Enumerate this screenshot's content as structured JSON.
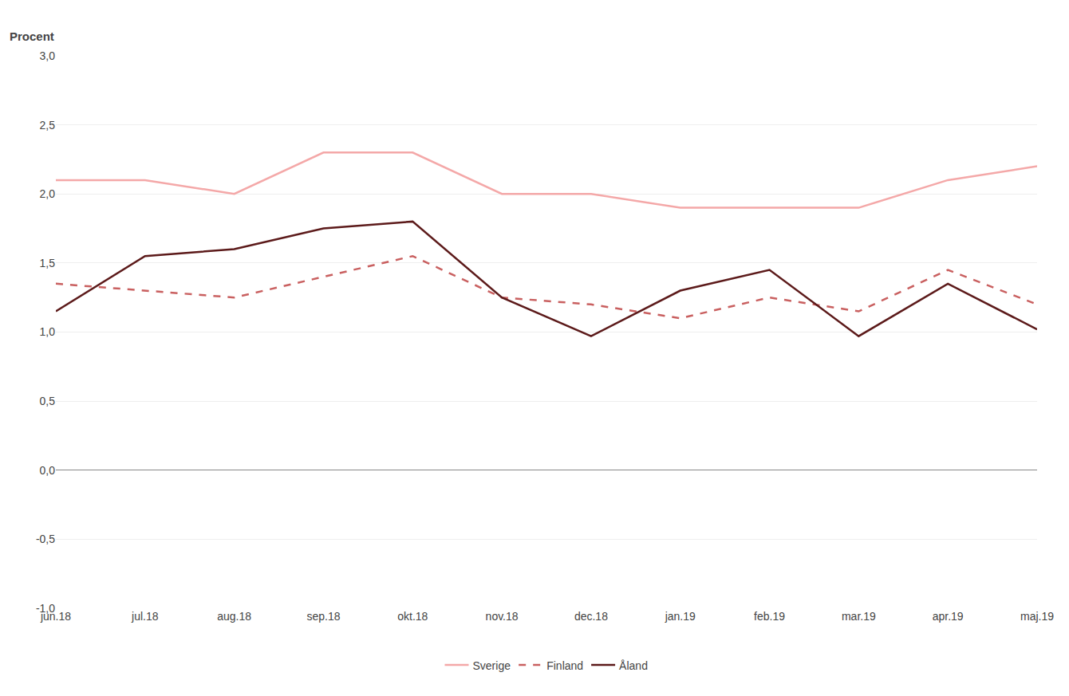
{
  "chart_data": {
    "type": "line",
    "ylabel": "Procent",
    "categories": [
      "jun.18",
      "jul.18",
      "aug.18",
      "sep.18",
      "okt.18",
      "nov.18",
      "dec.18",
      "jan.19",
      "feb.19",
      "mar.19",
      "apr.19",
      "maj.19"
    ],
    "series": [
      {
        "name": "Sverige",
        "color": "#f4a8a8",
        "line_style": "solid",
        "values": [
          2.1,
          2.1,
          2.0,
          2.3,
          2.3,
          2.0,
          2.0,
          1.9,
          1.9,
          1.9,
          2.1,
          2.2
        ]
      },
      {
        "name": "Finland",
        "color": "#c96060",
        "line_style": "dashed",
        "values": [
          1.35,
          1.3,
          1.25,
          1.4,
          1.55,
          1.25,
          1.2,
          1.1,
          1.25,
          1.15,
          1.45,
          1.2
        ]
      },
      {
        "name": "Åland",
        "color": "#5c1a1a",
        "line_style": "solid",
        "values": [
          1.15,
          1.55,
          1.6,
          1.75,
          1.8,
          1.25,
          0.97,
          1.3,
          1.45,
          0.97,
          1.35,
          1.02
        ]
      }
    ],
    "ylim": [
      -1.0,
      3.0
    ],
    "yticks": [
      {
        "value": -1.0,
        "label": "-1,0"
      },
      {
        "value": -0.5,
        "label": "-0,5"
      },
      {
        "value": 0.0,
        "label": "0,0"
      },
      {
        "value": 0.5,
        "label": "0,5"
      },
      {
        "value": 1.0,
        "label": "1,0"
      },
      {
        "value": 1.5,
        "label": "1,5"
      },
      {
        "value": 2.0,
        "label": "2,0"
      },
      {
        "value": 2.5,
        "label": "2,5"
      },
      {
        "value": 3.0,
        "label": "3,0"
      }
    ],
    "grid": true,
    "legend": "bottom"
  }
}
